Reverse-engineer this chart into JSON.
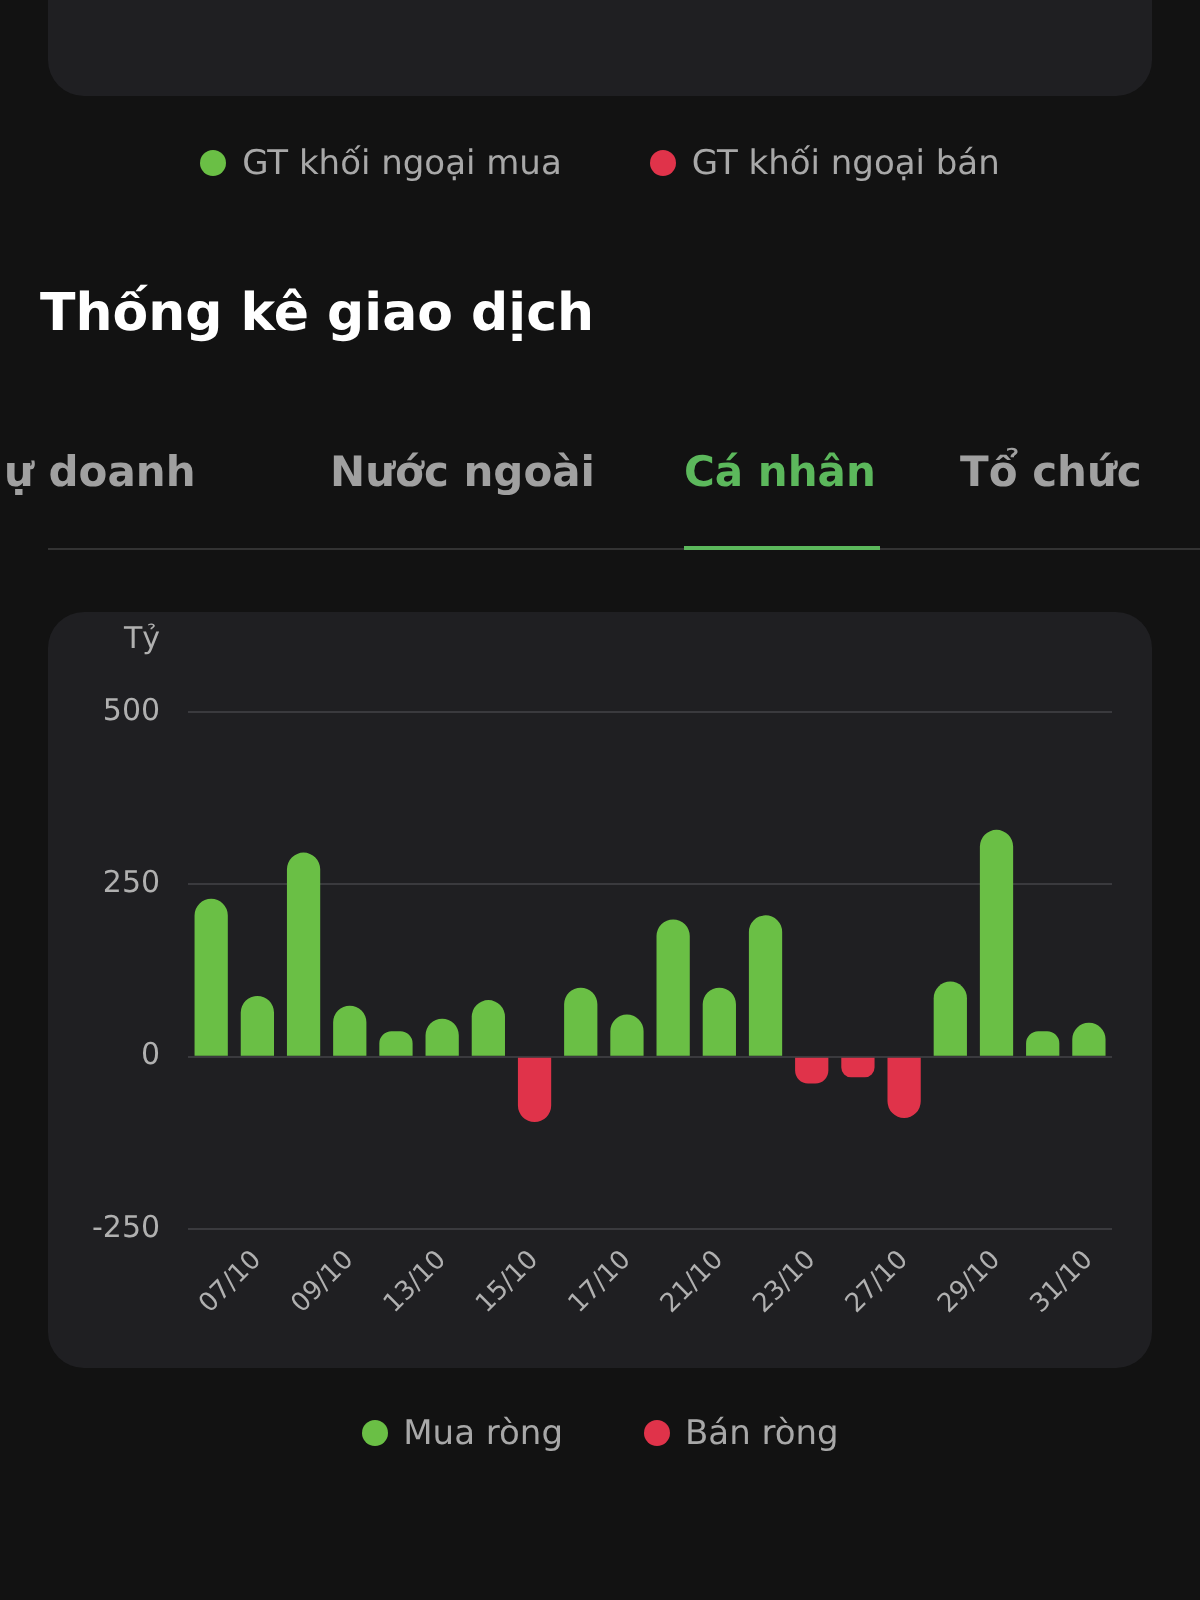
{
  "chart_data": {
    "type": "bar",
    "title": "Thống kê giao dịch",
    "ylabel": "Tỷ",
    "annotations": [
      "GT khối ngoại mua",
      "GT khối ngoại bán",
      "ự doanh",
      "Nước ngoài",
      "Cá nhân",
      "Tổ chức",
      "Mua ròng",
      "Bán ròng"
    ],
    "categories": [
      null,
      "07/10",
      null,
      "09/10",
      null,
      "13/10",
      null,
      "15/10",
      null,
      "17/10",
      null,
      "21/10",
      null,
      "23/10",
      null,
      "27/10",
      null,
      "29/10",
      null,
      "31/10"
    ],
    "values": [
      229,
      88,
      296,
      74,
      37,
      55,
      82,
      -95,
      100,
      61,
      199,
      100,
      205,
      -39,
      -30,
      -89,
      109,
      329,
      37,
      49
    ],
    "colors": [
      "#6abf45",
      "#6abf45",
      "#6abf45",
      "#6abf45",
      "#6abf45",
      "#6abf45",
      "#6abf45",
      "#e0334a",
      "#6abf45",
      "#6abf45",
      "#6abf45",
      "#6abf45",
      "#6abf45",
      "#e0334a",
      "#e0334a",
      "#e0334a",
      "#6abf45",
      "#6abf45",
      "#6abf45",
      "#6abf45"
    ],
    "ylim": [
      -250,
      500
    ],
    "yticks": [
      -250,
      0,
      250,
      500
    ],
    "grid": "y"
  }
}
